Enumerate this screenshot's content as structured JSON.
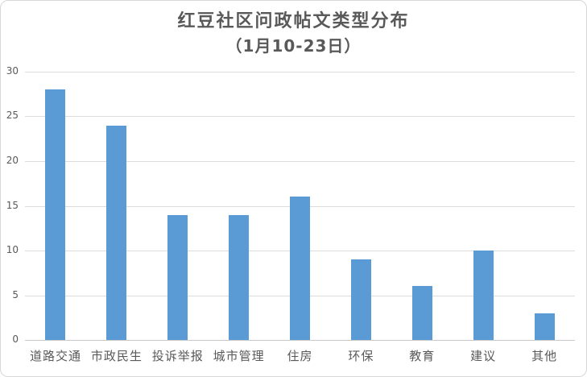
{
  "chart_data": {
    "type": "bar",
    "title": "红豆社区问政帖文类型分布",
    "subtitle": "（1月10-23日）",
    "categories": [
      "道路交通",
      "市政民生",
      "投诉举报",
      "城市管理",
      "住房",
      "环保",
      "教育",
      "建议",
      "其他"
    ],
    "values": [
      28,
      24,
      14,
      14,
      16,
      9,
      6,
      10,
      3
    ],
    "xlabel": "",
    "ylabel": "",
    "ylim": [
      0,
      30
    ],
    "yticks": [
      0,
      5,
      10,
      15,
      20,
      25,
      30
    ],
    "grid": true,
    "legend_position": "none",
    "colors": {
      "bar": "#5b9bd5",
      "gridline": "#dcdcdc",
      "axis_line": "#c9c9c9",
      "text": "#595959",
      "background": "#ffffff",
      "frame_border": "#d7d7d7"
    }
  }
}
